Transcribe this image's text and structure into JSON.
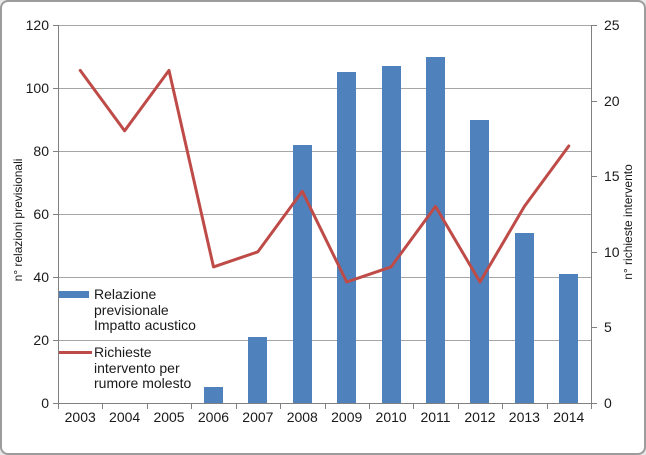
{
  "chart_data": {
    "type": "combo-bar-line",
    "categories": [
      "2003",
      "2004",
      "2005",
      "2006",
      "2007",
      "2008",
      "2009",
      "2010",
      "2011",
      "2012",
      "2013",
      "2014"
    ],
    "series": [
      {
        "name": "Relazione previsionale Impatto acustico",
        "type": "bar",
        "axis": "left",
        "color": "#4F81BD",
        "values": [
          0,
          0,
          0,
          5,
          21,
          82,
          105,
          107,
          110,
          90,
          54,
          41
        ]
      },
      {
        "name": "Richieste intervento per rumore molesto",
        "type": "line",
        "axis": "right",
        "color": "#BE4B48",
        "values": [
          22,
          18,
          22,
          9,
          10,
          14,
          8,
          9,
          13,
          8,
          13,
          17
        ]
      }
    ],
    "left_axis": {
      "title": "n° relazioni previsionali",
      "min": 0,
      "max": 120,
      "step": 20,
      "tick_labels": [
        "0",
        "20",
        "40",
        "60",
        "80",
        "100",
        "120"
      ]
    },
    "right_axis": {
      "title": "n° richieste intervento",
      "min": 0,
      "max": 25,
      "step": 5,
      "tick_labels": [
        "0",
        "5",
        "10",
        "15",
        "20",
        "25"
      ]
    },
    "grid": true,
    "legend_position": "inside-left",
    "legend": [
      {
        "marker": "bar",
        "color": "#4F81BD",
        "label_lines": [
          "Relazione",
          "previsionale",
          "Impatto acustico"
        ]
      },
      {
        "marker": "line",
        "color": "#BE4B48",
        "label_lines": [
          "Richieste",
          "intervento per",
          "rumore molesto"
        ]
      }
    ],
    "colors": {
      "gridline": "#A6A6A6",
      "axis_line": "#808080",
      "text": "#1A1A1A",
      "plot_background": "#FFFFFF",
      "frame_border": "#9C9C9C"
    }
  }
}
